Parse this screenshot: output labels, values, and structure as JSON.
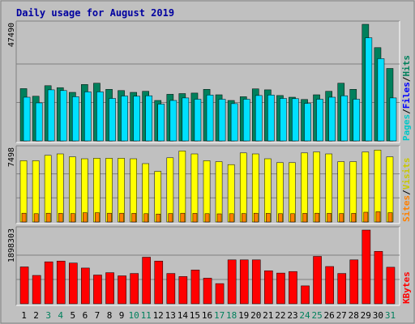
{
  "chart_data": {
    "title": "Daily usage for August 2019",
    "type": "bar",
    "days": [
      "1",
      "2",
      "3",
      "4",
      "5",
      "6",
      "7",
      "8",
      "9",
      "10",
      "11",
      "12",
      "13",
      "14",
      "15",
      "16",
      "17",
      "18",
      "19",
      "20",
      "21",
      "22",
      "23",
      "24",
      "25",
      "26",
      "27",
      "28",
      "29",
      "30",
      "31"
    ],
    "weekend_days": [
      3,
      4,
      10,
      11,
      17,
      18,
      24,
      25,
      31
    ],
    "colors": {
      "background": "#c0c0c0",
      "panel": "#ffffff",
      "title": "#0000a0",
      "weekday_label": "#000000",
      "weekend_label": "#00805c",
      "hits": "#00805c",
      "files": "#0000ff",
      "pages": "#00e0ff",
      "visits": "#ffff00",
      "sites": "#ff8000",
      "kbytes": "#ff0000"
    },
    "panels": [
      {
        "id": "hits-files-pages",
        "ymax_label": "47490",
        "ymax": 47490,
        "legend": [
          {
            "text": "Pages",
            "color": "#00c8c8"
          },
          {
            "text": "/",
            "color": "#000000"
          },
          {
            "text": "Files",
            "color": "#0000ff"
          },
          {
            "text": "/",
            "color": "#000000"
          },
          {
            "text": "Hits",
            "color": "#00805c"
          }
        ],
        "series": [
          {
            "name": "Hits",
            "color": "#00805c",
            "values": [
              21300,
              18200,
              22500,
              21700,
              19800,
              23000,
              23500,
              21000,
              20500,
              19800,
              20200,
              16500,
              19000,
              19300,
              19500,
              21000,
              18800,
              16500,
              18000,
              21200,
              20800,
              18500,
              17800,
              16900,
              18800,
              20200,
              23500,
              21000,
              47500,
              38000,
              29500
            ]
          },
          {
            "name": "Files",
            "color": "#00e0ff",
            "values": [
              17800,
              15500,
              20800,
              20500,
              18000,
              20000,
              20000,
              17300,
              18300,
              18200,
              18400,
              15000,
              16500,
              17500,
              17000,
              18700,
              17000,
              15200,
              17000,
              18500,
              18700,
              17300,
              17200,
              15300,
              17000,
              17800,
              18400,
              17000,
              42000,
              33500,
              17500
            ]
          }
        ]
      },
      {
        "id": "visits-sites",
        "ymax_label": "7498",
        "ymax": 7498,
        "legend": [
          {
            "text": "Sites",
            "color": "#ff8000"
          },
          {
            "text": "/",
            "color": "#000000"
          },
          {
            "text": "Visits",
            "color": "#c8c800"
          }
        ],
        "series": [
          {
            "name": "Visits",
            "color": "#ffff00",
            "values": [
              6300,
              6300,
              6850,
              7000,
              6700,
              6500,
              6550,
              6550,
              6550,
              6500,
              6000,
              5200,
              6600,
              7300,
              7000,
              6300,
              6200,
              5900,
              7100,
              7000,
              6500,
              6100,
              6100,
              7100,
              7200,
              7000,
              6200,
              6200,
              7200,
              7400,
              6700
            ]
          },
          {
            "name": "Sites",
            "color": "#ff8000",
            "values": [
              900,
              850,
              900,
              880,
              870,
              950,
              950,
              900,
              900,
              880,
              850,
              820,
              870,
              900,
              880,
              850,
              830,
              850,
              870,
              900,
              880,
              850,
              850,
              880,
              900,
              880,
              870,
              880,
              1000,
              1050,
              950
            ]
          }
        ]
      },
      {
        "id": "kbytes",
        "ymax_label": "1898303",
        "ymax": 1898303,
        "legend": [
          {
            "text": "KBytes",
            "color": "#ff0000"
          }
        ],
        "series": [
          {
            "name": "KBytes",
            "color": "#ff0000",
            "values": [
              950000,
              730000,
              1080000,
              1100000,
              1050000,
              920000,
              740000,
              800000,
              720000,
              780000,
              1200000,
              1100000,
              780000,
              700000,
              870000,
              660000,
              520000,
              1130000,
              1130000,
              1130000,
              850000,
              790000,
              830000,
              460000,
              1220000,
              960000,
              780000,
              1130000,
              1898303,
              1350000,
              940000
            ]
          }
        ]
      }
    ]
  }
}
